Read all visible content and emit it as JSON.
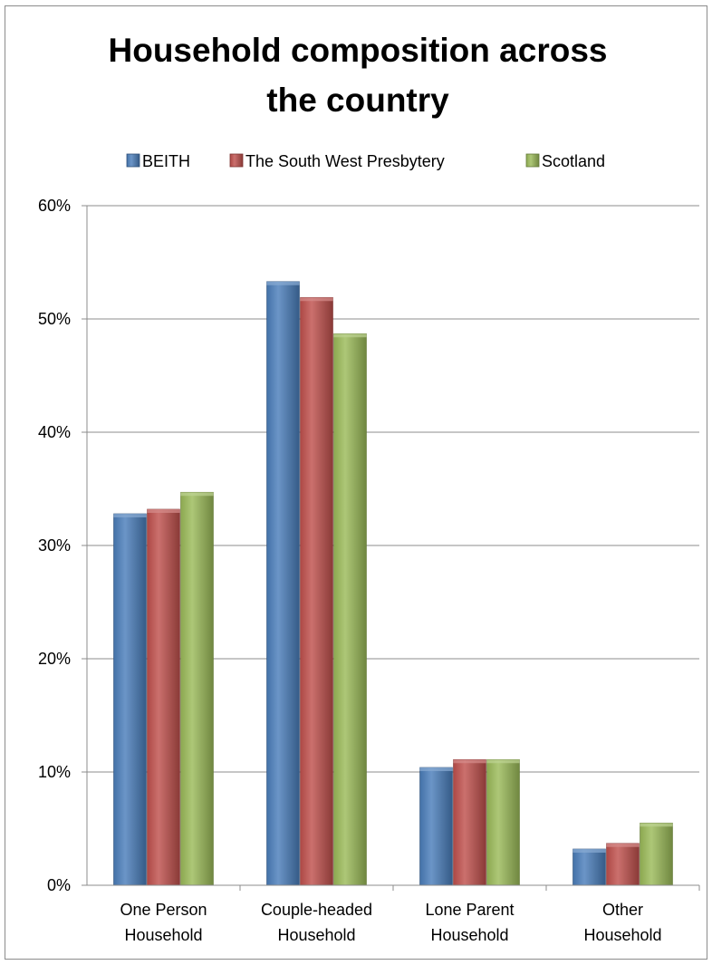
{
  "chart_data": {
    "type": "bar",
    "title_lines": [
      "Household composition across",
      "the country"
    ],
    "categories": [
      [
        "One Person",
        "Household"
      ],
      [
        "Couple-headed",
        "Household"
      ],
      [
        "Lone Parent",
        "Household"
      ],
      [
        "Other",
        "Household"
      ]
    ],
    "series": [
      {
        "name": "BEITH",
        "color": "#4a7ebb",
        "values": [
          32.8,
          53.3,
          10.4,
          3.2
        ]
      },
      {
        "name": "The South West Presbytery",
        "color": "#c0504d",
        "values": [
          33.2,
          51.9,
          11.1,
          3.7
        ]
      },
      {
        "name": "Scotland",
        "color": "#9bbb59",
        "values": [
          34.7,
          48.7,
          11.1,
          5.5
        ]
      }
    ],
    "y_ticks": [
      "0%",
      "10%",
      "20%",
      "30%",
      "40%",
      "50%",
      "60%"
    ],
    "ylim": [
      0,
      60
    ],
    "grid": true,
    "legend_position": "top"
  }
}
